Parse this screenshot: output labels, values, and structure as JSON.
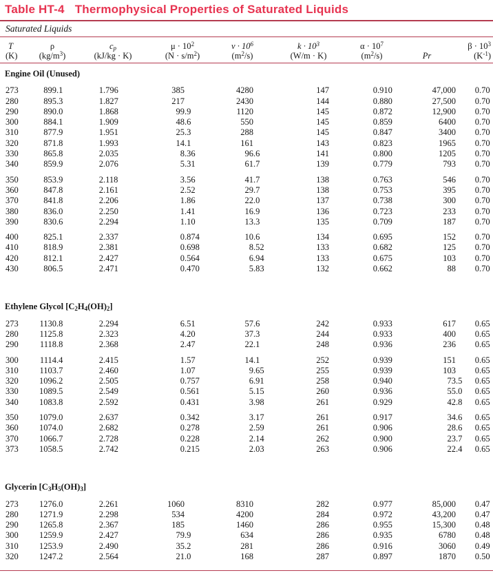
{
  "title": {
    "tag": "Table HT-4",
    "text": "Thermophysical Properties of Saturated Liquids"
  },
  "subtitle": "Saturated Liquids",
  "accent_color": "#e73350",
  "rule_color": "#b43a4f",
  "header": {
    "columns": [
      {
        "key": "T",
        "sym": "T",
        "unit": "(K)"
      },
      {
        "key": "rho",
        "sym": "ρ",
        "unit": "(kg/m^{3})"
      },
      {
        "key": "cp",
        "sym": "c_{p}",
        "unit": "(kJ/kg · K)"
      },
      {
        "key": "mu",
        "sym": "μ · 10^{2}",
        "unit": "(N · s/m^{2})"
      },
      {
        "key": "nu",
        "sym": "ν · 10^{6}",
        "unit": "(m^{2}/s)"
      },
      {
        "key": "k",
        "sym": "k · 10^{3}",
        "unit": "(W/m · K)"
      },
      {
        "key": "alpha",
        "sym": "α · 10^{7}",
        "unit": "(m^{2}/s)"
      },
      {
        "key": "Pr",
        "sym": "Pr",
        "unit": ""
      },
      {
        "key": "beta",
        "sym": "β · 10^{3}",
        "unit": "(K^{-1})"
      }
    ]
  },
  "sections": [
    {
      "id": "engine-oil",
      "name": "Engine Oil (Unused)",
      "groups": [
        [
          [
            "273",
            "899.1",
            "1.796",
            "385",
            "4280",
            "147",
            "0.910",
            "47,000",
            "0.70"
          ],
          [
            "280",
            "895.3",
            "1.827",
            "217",
            "2430",
            "144",
            "0.880",
            "27,500",
            "0.70"
          ],
          [
            "290",
            "890.0",
            "1.868",
            "99.9",
            "1120",
            "145",
            "0.872",
            "12,900",
            "0.70"
          ],
          [
            "300",
            "884.1",
            "1.909",
            "48.6",
            "550",
            "145",
            "0.859",
            "6400",
            "0.70"
          ],
          [
            "310",
            "877.9",
            "1.951",
            "25.3",
            "288",
            "145",
            "0.847",
            "3400",
            "0.70"
          ],
          [
            "320",
            "871.8",
            "1.993",
            "14.1",
            "161",
            "143",
            "0.823",
            "1965",
            "0.70"
          ],
          [
            "330",
            "865.8",
            "2.035",
            "8.36",
            "96.6",
            "141",
            "0.800",
            "1205",
            "0.70"
          ],
          [
            "340",
            "859.9",
            "2.076",
            "5.31",
            "61.7",
            "139",
            "0.779",
            "793",
            "0.70"
          ]
        ],
        [
          [
            "350",
            "853.9",
            "2.118",
            "3.56",
            "41.7",
            "138",
            "0.763",
            "546",
            "0.70"
          ],
          [
            "360",
            "847.8",
            "2.161",
            "2.52",
            "29.7",
            "138",
            "0.753",
            "395",
            "0.70"
          ],
          [
            "370",
            "841.8",
            "2.206",
            "1.86",
            "22.0",
            "137",
            "0.738",
            "300",
            "0.70"
          ],
          [
            "380",
            "836.0",
            "2.250",
            "1.41",
            "16.9",
            "136",
            "0.723",
            "233",
            "0.70"
          ],
          [
            "390",
            "830.6",
            "2.294",
            "1.10",
            "13.3",
            "135",
            "0.709",
            "187",
            "0.70"
          ]
        ],
        [
          [
            "400",
            "825.1",
            "2.337",
            "0.874",
            "10.6",
            "134",
            "0.695",
            "152",
            "0.70"
          ],
          [
            "410",
            "818.9",
            "2.381",
            "0.698",
            "8.52",
            "133",
            "0.682",
            "125",
            "0.70"
          ],
          [
            "420",
            "812.1",
            "2.427",
            "0.564",
            "6.94",
            "133",
            "0.675",
            "103",
            "0.70"
          ],
          [
            "430",
            "806.5",
            "2.471",
            "0.470",
            "5.83",
            "132",
            "0.662",
            "88",
            "0.70"
          ]
        ]
      ]
    },
    {
      "id": "ethylene-glycol",
      "name": "Ethylene Glycol [C_{2}H_{4}(OH)_{2}]",
      "groups": [
        [
          [
            "273",
            "1130.8",
            "2.294",
            "6.51",
            "57.6",
            "242",
            "0.933",
            "617",
            "0.65"
          ],
          [
            "280",
            "1125.8",
            "2.323",
            "4.20",
            "37.3",
            "244",
            "0.933",
            "400",
            "0.65"
          ],
          [
            "290",
            "1118.8",
            "2.368",
            "2.47",
            "22.1",
            "248",
            "0.936",
            "236",
            "0.65"
          ]
        ],
        [
          [
            "300",
            "1114.4",
            "2.415",
            "1.57",
            "14.1",
            "252",
            "0.939",
            "151",
            "0.65"
          ],
          [
            "310",
            "1103.7",
            "2.460",
            "1.07",
            "9.65",
            "255",
            "0.939",
            "103",
            "0.65"
          ],
          [
            "320",
            "1096.2",
            "2.505",
            "0.757",
            "6.91",
            "258",
            "0.940",
            "73.5",
            "0.65"
          ],
          [
            "330",
            "1089.5",
            "2.549",
            "0.561",
            "5.15",
            "260",
            "0.936",
            "55.0",
            "0.65"
          ],
          [
            "340",
            "1083.8",
            "2.592",
            "0.431",
            "3.98",
            "261",
            "0.929",
            "42.8",
            "0.65"
          ]
        ],
        [
          [
            "350",
            "1079.0",
            "2.637",
            "0.342",
            "3.17",
            "261",
            "0.917",
            "34.6",
            "0.65"
          ],
          [
            "360",
            "1074.0",
            "2.682",
            "0.278",
            "2.59",
            "261",
            "0.906",
            "28.6",
            "0.65"
          ],
          [
            "370",
            "1066.7",
            "2.728",
            "0.228",
            "2.14",
            "262",
            "0.900",
            "23.7",
            "0.65"
          ],
          [
            "373",
            "1058.5",
            "2.742",
            "0.215",
            "2.03",
            "263",
            "0.906",
            "22.4",
            "0.65"
          ]
        ]
      ]
    },
    {
      "id": "glycerin",
      "name": "Glycerin [C_{3}H_{5}(OH)_{3}]",
      "groups": [
        [
          [
            "273",
            "1276.0",
            "2.261",
            "1060",
            "8310",
            "282",
            "0.977",
            "85,000",
            "0.47"
          ],
          [
            "280",
            "1271.9",
            "2.298",
            "534",
            "4200",
            "284",
            "0.972",
            "43,200",
            "0.47"
          ],
          [
            "290",
            "1265.8",
            "2.367",
            "185",
            "1460",
            "286",
            "0.955",
            "15,300",
            "0.48"
          ],
          [
            "300",
            "1259.9",
            "2.427",
            "79.9",
            "634",
            "286",
            "0.935",
            "6780",
            "0.48"
          ],
          [
            "310",
            "1253.9",
            "2.490",
            "35.2",
            "281",
            "286",
            "0.916",
            "3060",
            "0.49"
          ],
          [
            "320",
            "1247.2",
            "2.564",
            "21.0",
            "168",
            "287",
            "0.897",
            "1870",
            "0.50"
          ]
        ]
      ]
    }
  ]
}
